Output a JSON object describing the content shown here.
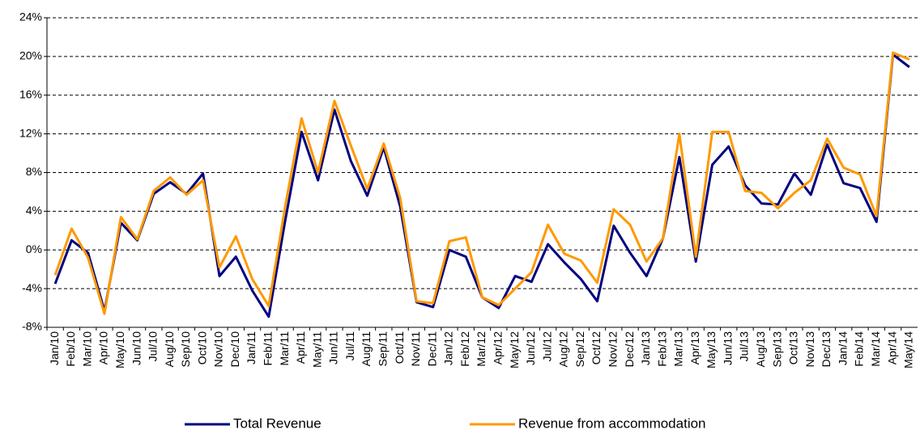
{
  "chart_data": {
    "type": "line",
    "categories": [
      "Jan/10",
      "Feb/10",
      "Mar/10",
      "Apr/10",
      "May/10",
      "Jun/10",
      "Jul/10",
      "Aug/10",
      "Sep/10",
      "Oct/10",
      "Nov/10",
      "Dec/10",
      "Jan/11",
      "Feb/11",
      "Mar/11",
      "Apr/11",
      "May/11",
      "Jun/11",
      "Jul/11",
      "Aug/11",
      "Sep/11",
      "Oct/11",
      "Nov/11",
      "Dec/11",
      "Jan/12",
      "Feb/12",
      "Mar/12",
      "Apr/12",
      "May/12",
      "Jun/12",
      "Jul/12",
      "Aug/12",
      "Sep/12",
      "Oct/12",
      "Nov/12",
      "Dec/12",
      "Jan/13",
      "Feb/13",
      "Mar/13",
      "Apr/13",
      "May/13",
      "Jun/13",
      "Jul/13",
      "Aug/13",
      "Sep/13",
      "Oct/13",
      "Nov/13",
      "Dec/13",
      "Jan/14",
      "Feb/14",
      "Mar/14",
      "Apr/14",
      "May/14"
    ],
    "series": [
      {
        "name": "Total Revenue",
        "color": "#000080",
        "values": [
          -3.5,
          1.0,
          -0.3,
          -6.3,
          2.8,
          1.0,
          5.8,
          7.0,
          5.8,
          7.9,
          -2.7,
          -0.7,
          -4.2,
          -6.9,
          3.0,
          12.2,
          7.2,
          14.5,
          9.2,
          5.6,
          10.6,
          4.5,
          -5.4,
          -5.9,
          0.0,
          -0.7,
          -4.9,
          -6.0,
          -2.7,
          -3.3,
          0.6,
          -1.3,
          -3.0,
          -5.3,
          2.5,
          -0.3,
          -2.7,
          1.2,
          9.6,
          -1.2,
          8.8,
          10.7,
          6.7,
          4.8,
          4.7,
          7.9,
          5.7,
          10.9,
          6.9,
          6.4,
          2.9,
          20.2,
          18.9
        ]
      },
      {
        "name": "Revenue from accommodation",
        "color": "#ff9900",
        "values": [
          -2.6,
          2.2,
          -0.8,
          -6.6,
          3.4,
          1.1,
          6.1,
          7.5,
          5.7,
          7.2,
          -1.8,
          1.4,
          -3.0,
          -5.8,
          4.5,
          13.6,
          8.0,
          15.4,
          10.8,
          6.3,
          11.0,
          5.4,
          -5.3,
          -5.5,
          0.9,
          1.3,
          -4.9,
          -5.7,
          -4.0,
          -2.3,
          2.6,
          -0.4,
          -1.1,
          -3.4,
          4.2,
          2.6,
          -1.2,
          1.2,
          12.0,
          -0.7,
          12.2,
          12.2,
          6.1,
          5.9,
          4.3,
          5.9,
          7.2,
          11.5,
          8.5,
          7.8,
          3.5,
          20.4,
          19.7
        ]
      }
    ],
    "ylim": [
      -8,
      24
    ],
    "yticks": [
      {
        "value": -8,
        "label": "-8%"
      },
      {
        "value": -4,
        "label": "-4%"
      },
      {
        "value": 0,
        "label": "0%"
      },
      {
        "value": 4,
        "label": "4%"
      },
      {
        "value": 8,
        "label": "8%"
      },
      {
        "value": 12,
        "label": "12%"
      },
      {
        "value": 16,
        "label": "16%"
      },
      {
        "value": 20,
        "label": "20%"
      },
      {
        "value": 24,
        "label": "24%"
      }
    ],
    "grid": true
  }
}
